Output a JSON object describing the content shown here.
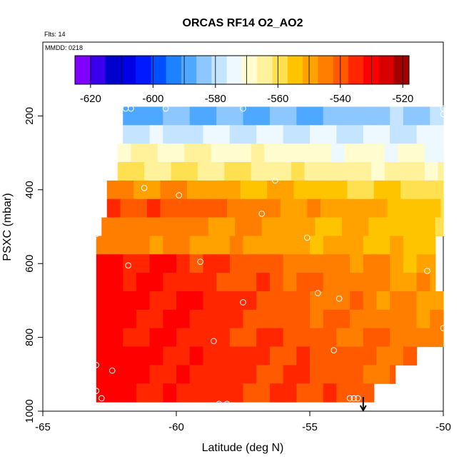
{
  "colors": {
    "palette": [
      "#7f00ff",
      "#3a00ee",
      "#0000cc",
      "#0000e6",
      "#0019ff",
      "#0050ff",
      "#1e82ff",
      "#4fa8ff",
      "#8cc8ff",
      "#c4e4ff",
      "#eef8ff",
      "#fffcd0",
      "#fff29a",
      "#ffe050",
      "#ffc400",
      "#ffa200",
      "#ff7e00",
      "#ff5a00",
      "#ff2600",
      "#ff0000",
      "#d90000",
      "#a30000"
    ],
    "obs_circle": "#ffffff",
    "marker": "#000000"
  },
  "chart_data": {
    "type": "heatmap",
    "title": "ORCAS RF14 O2_AO2",
    "annotations": [
      "Flts: 14",
      "MMDD: 0218"
    ],
    "xlabel": "Latitude (deg N)",
    "ylabel": "PSXC (mbar)",
    "xlim": [
      -65,
      -50
    ],
    "ylim": [
      1000,
      0
    ],
    "xticks": [
      -65,
      -60,
      -55,
      -50
    ],
    "yticks": [
      200,
      400,
      600,
      800,
      1000
    ],
    "colorbar": {
      "range": [
        -625,
        -518
      ],
      "ticks": [
        -620,
        -600,
        -580,
        -560,
        -540,
        -520
      ],
      "location": "top"
    },
    "marker_arrow_lat": -53,
    "pressure_levels": [
      200,
      250,
      300,
      350,
      400,
      450,
      500,
      550,
      600,
      650,
      700,
      750,
      800,
      850,
      900,
      950
    ],
    "rows": [
      {
        "p": 200,
        "lat_min": -62.0,
        "lat_max": -50.0,
        "v0": -588,
        "v1": -582
      },
      {
        "p": 250,
        "lat_min": -62.0,
        "lat_max": -50.0,
        "v0": -578,
        "v1": -576
      },
      {
        "p": 300,
        "lat_min": -62.2,
        "lat_max": -50.0,
        "v0": -566,
        "v1": -572
      },
      {
        "p": 350,
        "lat_min": -62.2,
        "lat_max": -50.0,
        "v0": -560,
        "v1": -566
      },
      {
        "p": 400,
        "lat_min": -62.6,
        "lat_max": -50.0,
        "v0": -545,
        "v1": -560
      },
      {
        "p": 450,
        "lat_min": -62.6,
        "lat_max": -50.0,
        "v0": -536,
        "v1": -556
      },
      {
        "p": 500,
        "lat_min": -62.8,
        "lat_max": -50.0,
        "v0": -543,
        "v1": -556
      },
      {
        "p": 550,
        "lat_min": -63.0,
        "lat_max": -50.3,
        "v0": -545,
        "v1": -554
      },
      {
        "p": 600,
        "lat_min": -63.0,
        "lat_max": -50.3,
        "v0": -530,
        "v1": -552
      },
      {
        "p": 650,
        "lat_min": -63.0,
        "lat_max": -50.3,
        "v0": -530,
        "v1": -550
      },
      {
        "p": 700,
        "lat_min": -63.0,
        "lat_max": -50.0,
        "v0": -528,
        "v1": -550
      },
      {
        "p": 750,
        "lat_min": -63.0,
        "lat_max": -50.0,
        "v0": -530,
        "v1": -548
      },
      {
        "p": 800,
        "lat_min": -63.0,
        "lat_max": -50.0,
        "v0": -530,
        "v1": -546
      },
      {
        "p": 850,
        "lat_min": -63.0,
        "lat_max": -51.0,
        "v0": -530,
        "v1": -544
      },
      {
        "p": 900,
        "lat_min": -63.0,
        "lat_max": -51.8,
        "v0": -530,
        "v1": -542
      },
      {
        "p": 950,
        "lat_min": -63.0,
        "lat_max": -52.6,
        "v0": -532,
        "v1": -540
      }
    ],
    "observations": [
      {
        "lat": -61.9,
        "p": 180
      },
      {
        "lat": -61.7,
        "p": 180
      },
      {
        "lat": -60.4,
        "p": 180
      },
      {
        "lat": -57.5,
        "p": 180
      },
      {
        "lat": -50.0,
        "p": 180
      },
      {
        "lat": -50.0,
        "p": 195
      },
      {
        "lat": -61.2,
        "p": 395
      },
      {
        "lat": -59.9,
        "p": 415
      },
      {
        "lat": -56.3,
        "p": 375
      },
      {
        "lat": -56.8,
        "p": 465
      },
      {
        "lat": -55.1,
        "p": 530
      },
      {
        "lat": -63.0,
        "p": 520
      },
      {
        "lat": -61.8,
        "p": 605
      },
      {
        "lat": -59.1,
        "p": 595
      },
      {
        "lat": -50.6,
        "p": 620
      },
      {
        "lat": -54.7,
        "p": 680
      },
      {
        "lat": -57.5,
        "p": 705
      },
      {
        "lat": -53.9,
        "p": 695
      },
      {
        "lat": -50.0,
        "p": 775
      },
      {
        "lat": -58.6,
        "p": 810
      },
      {
        "lat": -54.1,
        "p": 835
      },
      {
        "lat": -63.0,
        "p": 875
      },
      {
        "lat": -62.4,
        "p": 890
      },
      {
        "lat": -63.0,
        "p": 945
      },
      {
        "lat": -62.8,
        "p": 965
      },
      {
        "lat": -58.4,
        "p": 980
      },
      {
        "lat": -58.1,
        "p": 980
      },
      {
        "lat": -53.5,
        "p": 965
      },
      {
        "lat": -53.35,
        "p": 965
      },
      {
        "lat": -53.2,
        "p": 965
      }
    ]
  }
}
